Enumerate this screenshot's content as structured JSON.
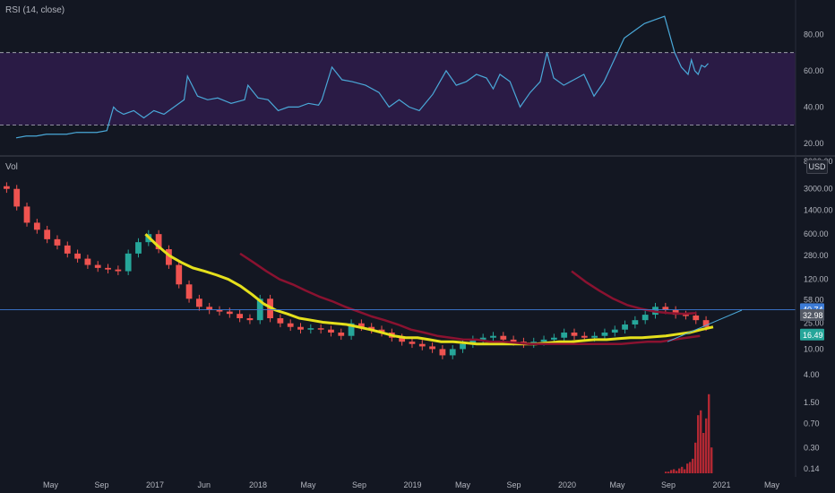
{
  "rsi_panel": {
    "label": "RSI (14, close)"
  },
  "price_panel": {
    "label": "Vol",
    "currency": "USD"
  },
  "colors": {
    "background": "#131722",
    "rsi_line": "#4aa8d8",
    "rsi_band": "#2a1b45",
    "ma_fast": "#e5e01c",
    "ma_slow": "#8a1230",
    "volume": "#b22833",
    "horizontal_line": "#3d7bd6",
    "trend_line": "#4aa8d8",
    "up_candle": "#26a69a",
    "down_candle": "#ef5350"
  },
  "chart_data": [
    {
      "type": "line",
      "panel": "RSI (14, close)",
      "y_ticks": [
        "80.00",
        "60.00",
        "40.00",
        "20.00"
      ],
      "ylim": [
        14,
        98
      ],
      "bands": [
        70,
        30
      ],
      "x": [
        0,
        0.15,
        0.3,
        0.45,
        0.6,
        0.75,
        0.9,
        1.05,
        1.2,
        1.35,
        1.45,
        1.5,
        1.6,
        1.75,
        1.9,
        2.05,
        2.2,
        2.35,
        2.5,
        2.55,
        2.7,
        2.85,
        3.0,
        3.2,
        3.4,
        3.45,
        3.6,
        3.75,
        3.9,
        4.05,
        4.2,
        4.35,
        4.5,
        4.55,
        4.7,
        4.85,
        5.0,
        5.2,
        5.4,
        5.55,
        5.7,
        5.85,
        6.0,
        6.2,
        6.4,
        6.55,
        6.7,
        6.85,
        7.0,
        7.1,
        7.2,
        7.35,
        7.5,
        7.65,
        7.8,
        7.9,
        8.0,
        8.15,
        8.3,
        8.45,
        8.6,
        8.75,
        8.9,
        9.05,
        9.2,
        9.35,
        9.5,
        9.65,
        9.8,
        9.9,
        10.0,
        10.05,
        10.1,
        10.15,
        10.2,
        10.25,
        10.3
      ],
      "values": [
        23,
        24,
        24,
        25,
        25,
        25,
        26,
        26,
        26,
        27,
        40,
        38,
        36,
        38,
        34,
        38,
        36,
        40,
        44,
        57,
        46,
        44,
        45,
        42,
        44,
        52,
        45,
        44,
        38,
        40,
        40,
        42,
        41,
        44,
        62,
        55,
        54,
        52,
        48,
        40,
        44,
        40,
        38,
        47,
        60,
        52,
        54,
        58,
        56,
        50,
        58,
        54,
        40,
        48,
        54,
        70,
        56,
        52,
        55,
        58,
        46,
        54,
        66,
        78,
        82,
        86,
        88,
        90,
        70,
        62,
        58,
        66,
        60,
        58,
        63,
        62,
        64
      ],
      "x_ticks": [
        "May",
        "Sep",
        "2017",
        "Jun",
        "2018",
        "May",
        "Sep",
        "2019",
        "May",
        "Sep",
        "2020",
        "May",
        "Sep",
        "2021",
        "May"
      ]
    },
    {
      "type": "candlestick",
      "panel": "Vol",
      "y_scale": "log",
      "y_ticks": [
        "8000.00",
        "3000.00",
        "1400.00",
        "600.00",
        "280.00",
        "120.00",
        "58.00",
        "25.00",
        "10.00",
        "4.00",
        "1.50",
        "0.70",
        "0.30",
        "0.14"
      ],
      "price_badges": [
        {
          "value": "40.74",
          "color": "#3d7bd6"
        },
        {
          "value": "32.98",
          "color": "#545a66"
        },
        {
          "value": "16.49",
          "color": "#26a69a"
        }
      ],
      "series_close": [
        3000,
        1600,
        900,
        700,
        500,
        400,
        300,
        250,
        200,
        180,
        170,
        160,
        300,
        450,
        600,
        350,
        200,
        100,
        60,
        45,
        40,
        38,
        35,
        30,
        28,
        60,
        30,
        25,
        22,
        20,
        21,
        20,
        18,
        16,
        25,
        22,
        20,
        18,
        15,
        13,
        12,
        11,
        10,
        8,
        10,
        12,
        14,
        15,
        16,
        14,
        13,
        12,
        13,
        14,
        15,
        18,
        16,
        15,
        16,
        18,
        20,
        24,
        28,
        34,
        45,
        40,
        34,
        33,
        28,
        22
      ],
      "ma_fast": [
        null,
        null,
        null,
        null,
        null,
        null,
        null,
        null,
        null,
        null,
        null,
        null,
        600,
        400,
        280,
        220,
        180,
        160,
        140,
        120,
        95,
        70,
        50,
        40,
        35,
        30,
        28,
        26,
        25,
        24,
        22,
        20,
        18,
        16,
        15,
        15,
        14,
        13,
        13,
        12.5,
        12,
        12,
        12,
        12,
        12,
        12,
        12.5,
        13,
        13,
        13.5,
        14,
        14,
        14.5,
        15,
        15,
        15.5,
        16,
        17,
        18,
        20,
        22
      ],
      "ma_slow": [
        null,
        null,
        null,
        null,
        null,
        null,
        null,
        null,
        null,
        null,
        null,
        null,
        null,
        null,
        null,
        null,
        null,
        null,
        300,
        220,
        160,
        120,
        100,
        80,
        65,
        55,
        45,
        38,
        32,
        28,
        24,
        20,
        18,
        16,
        15,
        14,
        14,
        13,
        13,
        12.5,
        12,
        12,
        12,
        12,
        12,
        12,
        12,
        12,
        12.5,
        13,
        13,
        14,
        15,
        16
      ],
      "ma_slow_late": [
        160,
        110,
        80,
        60,
        48,
        42,
        38,
        36,
        35,
        36
      ],
      "horizontal_level": 40.74,
      "volume_heights": [
        0.02,
        0.02,
        0.04,
        0.05,
        0.03,
        0.06,
        0.08,
        0.05,
        0.12,
        0.14,
        0.18,
        0.38,
        0.72,
        0.78,
        0.5,
        0.68,
        0.98,
        0.32
      ]
    }
  ]
}
